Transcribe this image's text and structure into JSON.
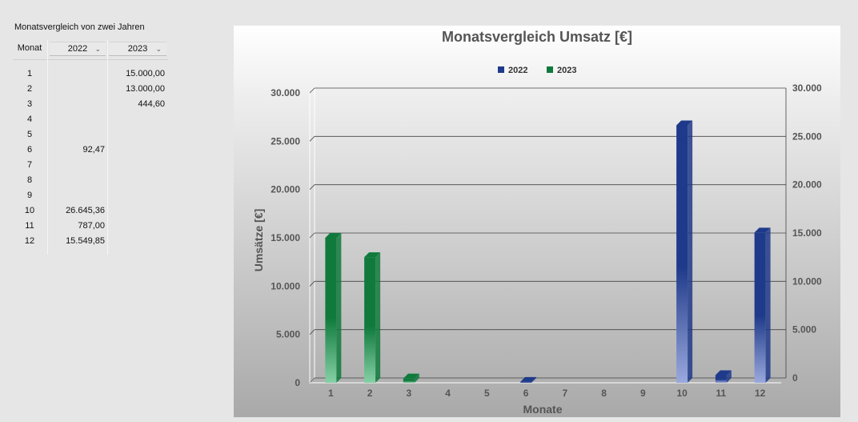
{
  "table": {
    "title": "Monatsvergleich von zwei Jahren",
    "header_month": "Monat",
    "header_year1": "2022",
    "header_year2": "2023",
    "rows": [
      {
        "month": "1",
        "y2022": "",
        "y2023": "15.000,00"
      },
      {
        "month": "2",
        "y2022": "",
        "y2023": "13.000,00"
      },
      {
        "month": "3",
        "y2022": "",
        "y2023": "444,60"
      },
      {
        "month": "4",
        "y2022": "",
        "y2023": ""
      },
      {
        "month": "5",
        "y2022": "",
        "y2023": ""
      },
      {
        "month": "6",
        "y2022": "92,47",
        "y2023": ""
      },
      {
        "month": "7",
        "y2022": "",
        "y2023": ""
      },
      {
        "month": "8",
        "y2022": "",
        "y2023": ""
      },
      {
        "month": "9",
        "y2022": "",
        "y2023": ""
      },
      {
        "month": "10",
        "y2022": "26.645,36",
        "y2023": ""
      },
      {
        "month": "11",
        "y2022": "787,00",
        "y2023": ""
      },
      {
        "month": "12",
        "y2022": "15.549,85",
        "y2023": ""
      }
    ]
  },
  "chart_data": {
    "type": "bar",
    "title": "Monatsvergleich Umsatz [€]",
    "xlabel": "Monate",
    "ylabel": "Umsätze [€]",
    "categories": [
      "1",
      "2",
      "3",
      "4",
      "5",
      "6",
      "7",
      "8",
      "9",
      "10",
      "11",
      "12"
    ],
    "series": [
      {
        "name": "2022",
        "color": "#1f3a8a",
        "values": [
          0,
          0,
          0,
          0,
          0,
          92.47,
          0,
          0,
          0,
          26645.36,
          787,
          15549.85
        ]
      },
      {
        "name": "2023",
        "color": "#0f7a3c",
        "values": [
          15000,
          13000,
          444.6,
          0,
          0,
          0,
          0,
          0,
          0,
          0,
          0,
          0
        ]
      }
    ],
    "ylim": [
      0,
      30000
    ],
    "yticks": [
      0,
      5000,
      10000,
      15000,
      20000,
      25000,
      30000
    ],
    "ytick_labels": [
      "0",
      "5.000",
      "10.000",
      "15.000",
      "20.000",
      "25.000",
      "30.000"
    ],
    "secondary_axis": true,
    "grid": true,
    "legend": "top-center"
  }
}
